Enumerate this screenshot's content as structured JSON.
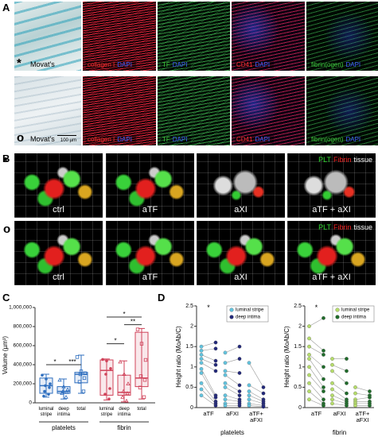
{
  "panel_labels": [
    "A",
    "B",
    "C",
    "D"
  ],
  "panel_a": {
    "rows": [
      {
        "marker": "*",
        "images": [
          [
            {
              "text": "Movat's",
              "color": "#000000"
            }
          ],
          [
            {
              "text": "collagen I",
              "color": "#ff3030"
            },
            {
              "text": "DAPI",
              "color": "#4060ff"
            }
          ],
          [
            {
              "text": "TF",
              "color": "#40d040"
            },
            {
              "text": "DAPI",
              "color": "#4060ff"
            }
          ],
          [
            {
              "text": "CD41",
              "color": "#ff3030"
            },
            {
              "text": "DAPI",
              "color": "#4060ff"
            }
          ],
          [
            {
              "text": "fibrin(ogen)",
              "color": "#40d040"
            },
            {
              "text": "DAPI",
              "color": "#4060ff"
            }
          ]
        ]
      },
      {
        "marker": "o",
        "images": [
          [
            {
              "text": "Movat's",
              "color": "#000000"
            }
          ],
          [
            {
              "text": "collagen I",
              "color": "#ff3030"
            },
            {
              "text": "DAPI",
              "color": "#4060ff"
            }
          ],
          [
            {
              "text": "TF",
              "color": "#40d040"
            },
            {
              "text": "DAPI",
              "color": "#4060ff"
            }
          ],
          [
            {
              "text": "CD41",
              "color": "#ff3030"
            },
            {
              "text": "DAPI",
              "color": "#4060ff"
            }
          ],
          [
            {
              "text": "fibrin(ogen)",
              "color": "#40d040"
            },
            {
              "text": "DAPI",
              "color": "#4060ff"
            }
          ]
        ]
      }
    ],
    "scale_bar": "100 µm"
  },
  "panel_b": {
    "markers": [
      "*",
      "o"
    ],
    "conditions": [
      "ctrl",
      "aTF",
      "aXI",
      "aTF + aXI"
    ],
    "legend": [
      {
        "text": "PLT",
        "color": "#33dd33"
      },
      {
        "text": "Fibrin",
        "color": "#ee2222"
      },
      {
        "text": "tissue",
        "color": "#ffffff"
      }
    ]
  },
  "chart_data": [
    {
      "type": "box",
      "y_label": "Volume (µm³)",
      "ylim": [
        0,
        1000000
      ],
      "yticks": [
        0,
        {
          "value": 200000,
          "label": "200,000"
        },
        {
          "value": 400000,
          "label": "400,000"
        },
        {
          "value": 600000,
          "label": "600,000"
        },
        {
          "value": 800000,
          "label": "800,000"
        },
        {
          "value": 1000000,
          "label": "1,000,000"
        }
      ],
      "groups": [
        {
          "name": "platelets",
          "color": "#2f6fbf",
          "categories": [
            "luminal stripe",
            "deep intima",
            "total"
          ],
          "boxes": [
            {
              "min": 60000,
              "q1": 100000,
              "median": 180000,
              "q3": 260000,
              "max": 300000,
              "points": [
                290000,
                250000,
                200000,
                180000,
                160000,
                120000,
                90000,
                70000
              ]
            },
            {
              "min": 40000,
              "q1": 100000,
              "median": 120000,
              "q3": 170000,
              "max": 250000,
              "points": [
                240000,
                170000,
                140000,
                120000,
                110000,
                100000,
                60000
              ]
            },
            {
              "min": 100000,
              "q1": 210000,
              "median": 300000,
              "q3": 320000,
              "max": 500000,
              "points": [
                480000,
                330000,
                310000,
                300000,
                260000,
                220000,
                120000
              ]
            }
          ]
        },
        {
          "name": "fibrin",
          "color": "#d0435a",
          "categories": [
            "luminal stripe",
            "deep intima",
            "total"
          ],
          "boxes": [
            {
              "min": 30000,
              "q1": 80000,
              "median": 340000,
              "q3": 450000,
              "max": 460000,
              "points": [
                455000,
                440000,
                360000,
                300000,
                150000,
                90000,
                40000
              ]
            },
            {
              "min": 10000,
              "q1": 80000,
              "median": 110000,
              "q3": 290000,
              "max": 440000,
              "points": [
                430000,
                300000,
                200000,
                120000,
                100000,
                60000,
                20000
              ]
            },
            {
              "min": 40000,
              "q1": 170000,
              "median": 260000,
              "q3": 740000,
              "max": 780000,
              "points": [
                770000,
                620000,
                450000,
                280000,
                240000,
                160000,
                60000
              ]
            }
          ]
        }
      ],
      "significance": [
        "*",
        "***",
        "*",
        "*",
        "**"
      ]
    },
    {
      "type": "paired_dot",
      "title": "platelets",
      "y_label": "Height ratio (MoAb/C)",
      "ylim": [
        0,
        2.5
      ],
      "yticks": [
        0,
        0.5,
        1,
        1.5,
        2,
        2.5
      ],
      "categories": [
        "aTF",
        "aFXI",
        "aTF+ aFXI"
      ],
      "legend": "upper right",
      "annotations": [
        "*"
      ],
      "series": [
        {
          "name": "luminal stripe",
          "color": "#62c3de",
          "values": [
            [
              1.5,
              1.4,
              1.3,
              1.2,
              1.1,
              0.95,
              0.85,
              0.6,
              0.45,
              0.3
            ],
            [
              1.35,
              1.1,
              0.9,
              0.8,
              0.6,
              0.5,
              0.3,
              0.2,
              0.1,
              0.05
            ],
            [
              1.1,
              0.55,
              0.4,
              0.3,
              0.2,
              0.1,
              0.05
            ]
          ]
        },
        {
          "name": "deep intima",
          "color": "#23297a",
          "values": [
            [
              1.6,
              1.45,
              1.15,
              1.05,
              0.9,
              0.3,
              0.25,
              0.15,
              0.1,
              0.05
            ],
            [
              1.5,
              1.2,
              0.85,
              0.55,
              0.4,
              0.3,
              0.2,
              0.15,
              0.1,
              0.05
            ],
            [
              0.5,
              0.35,
              0.2,
              0.15,
              0.1,
              0.05,
              0.02
            ]
          ]
        }
      ]
    },
    {
      "type": "paired_dot",
      "title": "fibrin",
      "y_label": "Height ratio (MoAb/C)",
      "ylim": [
        0,
        2.5
      ],
      "yticks": [
        0,
        0.5,
        1,
        1.5,
        2,
        2.5
      ],
      "categories": [
        "aTF",
        "aFXI",
        "aTF+ aFXI"
      ],
      "legend": "upper right",
      "annotations": [
        "*"
      ],
      "series": [
        {
          "name": "luminal stripe",
          "color": "#b5dc6a",
          "values": [
            [
              2.0,
              1.7,
              1.5,
              1.3,
              1.2,
              1.0,
              0.8,
              0.6,
              0.4,
              0.2
            ],
            [
              1.2,
              1.05,
              0.9,
              0.6,
              0.45,
              0.3,
              0.2,
              0.1
            ],
            [
              0.5,
              0.35,
              0.2,
              0.15,
              0.1,
              0.05
            ]
          ]
        },
        {
          "name": "deep intima",
          "color": "#1f6b2a",
          "values": [
            [
              2.2,
              1.4,
              1.3,
              1.0,
              0.7,
              0.5,
              0.4,
              0.2,
              0.1,
              0.05
            ],
            [
              1.2,
              0.9,
              0.6,
              0.35,
              0.2,
              0.15,
              0.1,
              0.05
            ],
            [
              0.4,
              0.3,
              0.25,
              0.15,
              0.1,
              0.05
            ]
          ]
        }
      ]
    }
  ]
}
